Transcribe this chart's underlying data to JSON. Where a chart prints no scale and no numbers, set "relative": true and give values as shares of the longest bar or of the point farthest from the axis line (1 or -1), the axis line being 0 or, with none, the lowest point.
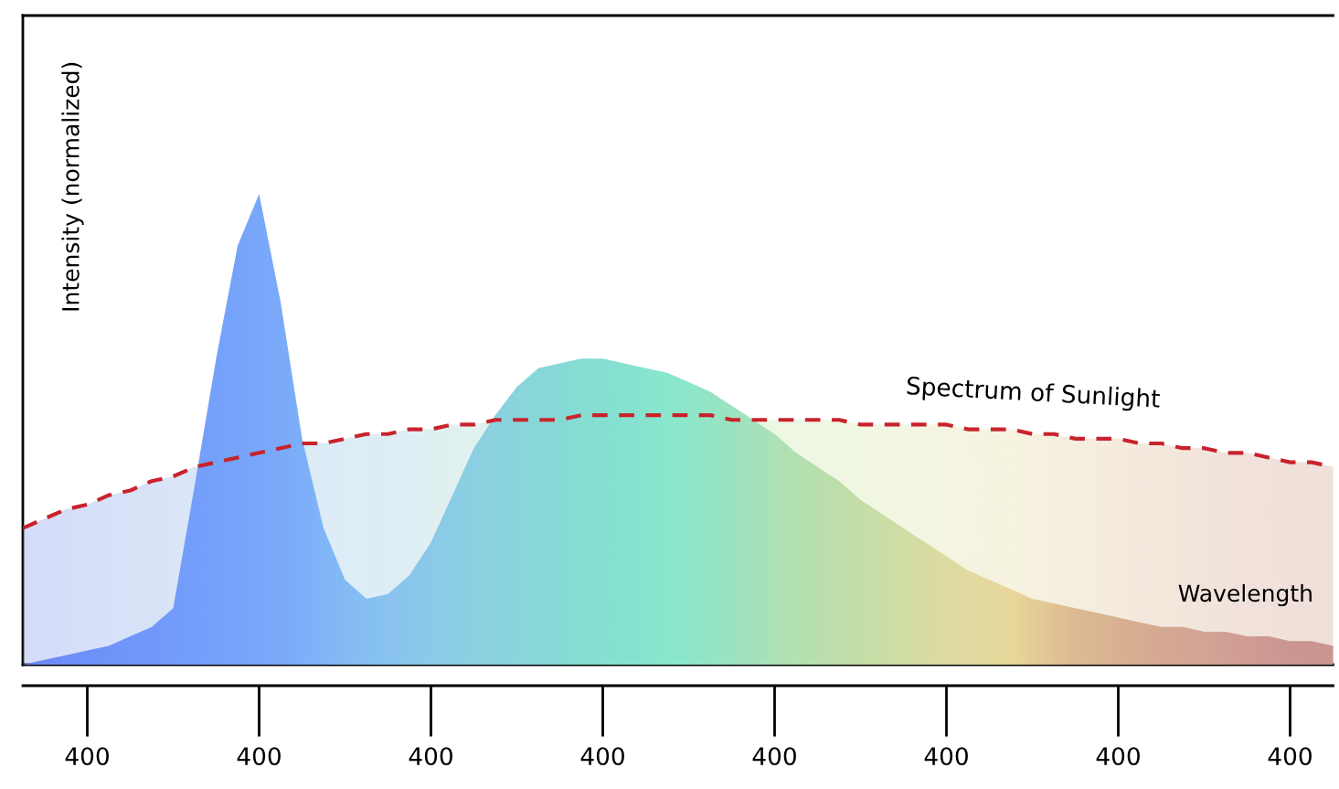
{
  "chart_data": {
    "type": "area",
    "relative": true,
    "xlabel": "Wavelength",
    "ylabel": "Intensity (normalized)",
    "legend": false,
    "categories": [
      null,
      null,
      null,
      "400",
      null,
      null,
      null,
      null,
      null,
      null,
      null,
      "400",
      null,
      null,
      null,
      null,
      null,
      null,
      null,
      "400",
      null,
      null,
      null,
      null,
      null,
      null,
      null,
      "400",
      null,
      null,
      null,
      null,
      null,
      null,
      null,
      "400",
      null,
      null,
      null,
      null,
      null,
      null,
      null,
      "400",
      null,
      null,
      null,
      null,
      null,
      null,
      null,
      "400",
      null,
      null,
      null,
      null,
      null,
      null,
      null,
      "400",
      null,
      null
    ],
    "series": [
      {
        "name": "Spectrum of Sunlight",
        "color": "#c8232c",
        "line_style": "dashed",
        "values": [
          0.29,
          0.31,
          0.33,
          0.34,
          0.36,
          0.37,
          0.39,
          0.4,
          0.42,
          0.43,
          0.44,
          0.45,
          0.46,
          0.47,
          0.47,
          0.48,
          0.49,
          0.49,
          0.5,
          0.5,
          0.51,
          0.51,
          0.52,
          0.52,
          0.52,
          0.52,
          0.53,
          0.53,
          0.53,
          0.53,
          0.53,
          0.53,
          0.53,
          0.52,
          0.52,
          0.52,
          0.52,
          0.52,
          0.52,
          0.51,
          0.51,
          0.51,
          0.51,
          0.51,
          0.5,
          0.5,
          0.5,
          0.49,
          0.49,
          0.48,
          0.48,
          0.48,
          0.47,
          0.47,
          0.46,
          0.46,
          0.45,
          0.45,
          0.44,
          0.43,
          0.43,
          0.42
        ],
        "colors": [
          "#d0d8fc",
          "#d1d9fc",
          "#d2dbfc",
          "#d3dcfc",
          "#d4ddfc",
          "#d5dffb",
          "#d6e0fb",
          "#d7e2fb",
          "#d8e3fb",
          "#d9e4fb",
          "#d9e6fb",
          "#dae7fb",
          "#dae8fa",
          "#dbe9fa",
          "#dbeafa",
          "#dcebfa",
          "#dcecf9",
          "#ddedf8",
          "#ddeef7",
          "#deeff5",
          "#dff0f3",
          "#e0f1f1",
          "#e1f3ef",
          "#e2f4ee",
          "#e3f5ed",
          "#e4f6ec",
          "#e5f7eb",
          "#e6f7ea",
          "#e7f8e9",
          "#e8f8e8",
          "#e9f8e7",
          "#eaf8e6",
          "#ebf8e5",
          "#ecf8e4",
          "#edf8e4",
          "#eef8e3",
          "#eff8e3",
          "#f0f7e3",
          "#f1f7e2",
          "#f2f7e2",
          "#f3f6e2",
          "#f4f6e2",
          "#f5f5e1",
          "#f6f5e1",
          "#f7f4e1",
          "#f8f4e0",
          "#f8f3e0",
          "#f8f1df",
          "#f8efde",
          "#f7edde",
          "#f7ebdd",
          "#f7e9dd",
          "#f6e7dc",
          "#f6e6dc",
          "#f5e4db",
          "#f4e2db",
          "#f3e1da",
          "#f2dfda",
          "#f1deda",
          "#f1ddd9",
          "#f0dcd8",
          "#f0dcd8"
        ]
      },
      {
        "color": "#7fb0f5",
        "values": [
          0,
          0.01,
          0.02,
          0.03,
          0.04,
          0.06,
          0.08,
          0.12,
          0.38,
          0.65,
          0.89,
          1,
          0.77,
          0.48,
          0.29,
          0.18,
          0.14,
          0.15,
          0.19,
          0.26,
          0.36,
          0.46,
          0.53,
          0.59,
          0.63,
          0.64,
          0.65,
          0.65,
          0.64,
          0.63,
          0.62,
          0.6,
          0.58,
          0.55,
          0.52,
          0.49,
          0.45,
          0.42,
          0.39,
          0.35,
          0.32,
          0.29,
          0.26,
          0.23,
          0.2,
          0.18,
          0.16,
          0.14,
          0.13,
          0.12,
          0.11,
          0.1,
          0.09,
          0.08,
          0.08,
          0.07,
          0.07,
          0.06,
          0.06,
          0.05,
          0.05,
          0.04
        ],
        "colors": [
          "#6a84f8",
          "#6b87f9",
          "#6c8afa",
          "#6d8dfa",
          "#6e90fb",
          "#6f93fb",
          "#7096fb",
          "#7199fb",
          "#729cfb",
          "#74a0fb",
          "#76a3fb",
          "#78a6fb",
          "#7aaafa",
          "#7db0f9",
          "#80b7f7",
          "#84bdf5",
          "#88c3f2",
          "#8bc7ee",
          "#8ecbea",
          "#8fcfe6",
          "#8fd3e2",
          "#8ed6de",
          "#8dd9da",
          "#8bdcd6",
          "#8adfd3",
          "#89e2d0",
          "#88e5cd",
          "#88e8cb",
          "#88ebc9",
          "#89eec7",
          "#8cf2c6",
          "#90f1c2",
          "#98efbc",
          "#a2edb6",
          "#abebb1",
          "#b4eaab",
          "#bce9a6",
          "#c3e8a1",
          "#cae79d",
          "#d1e69a",
          "#d8e698",
          "#dfe596",
          "#e6e494",
          "#ede393",
          "#f2e292",
          "#f6e18e",
          "#f9e08a",
          "#f6d486",
          "#f2c883",
          "#eebe81",
          "#eab880",
          "#e8b380",
          "#e6ae81",
          "#e5a982",
          "#e4a583",
          "#e3a284",
          "#e09e83",
          "#de9a82",
          "#dc9681",
          "#da9380",
          "#d9917f",
          "#d8907e"
        ]
      }
    ]
  }
}
